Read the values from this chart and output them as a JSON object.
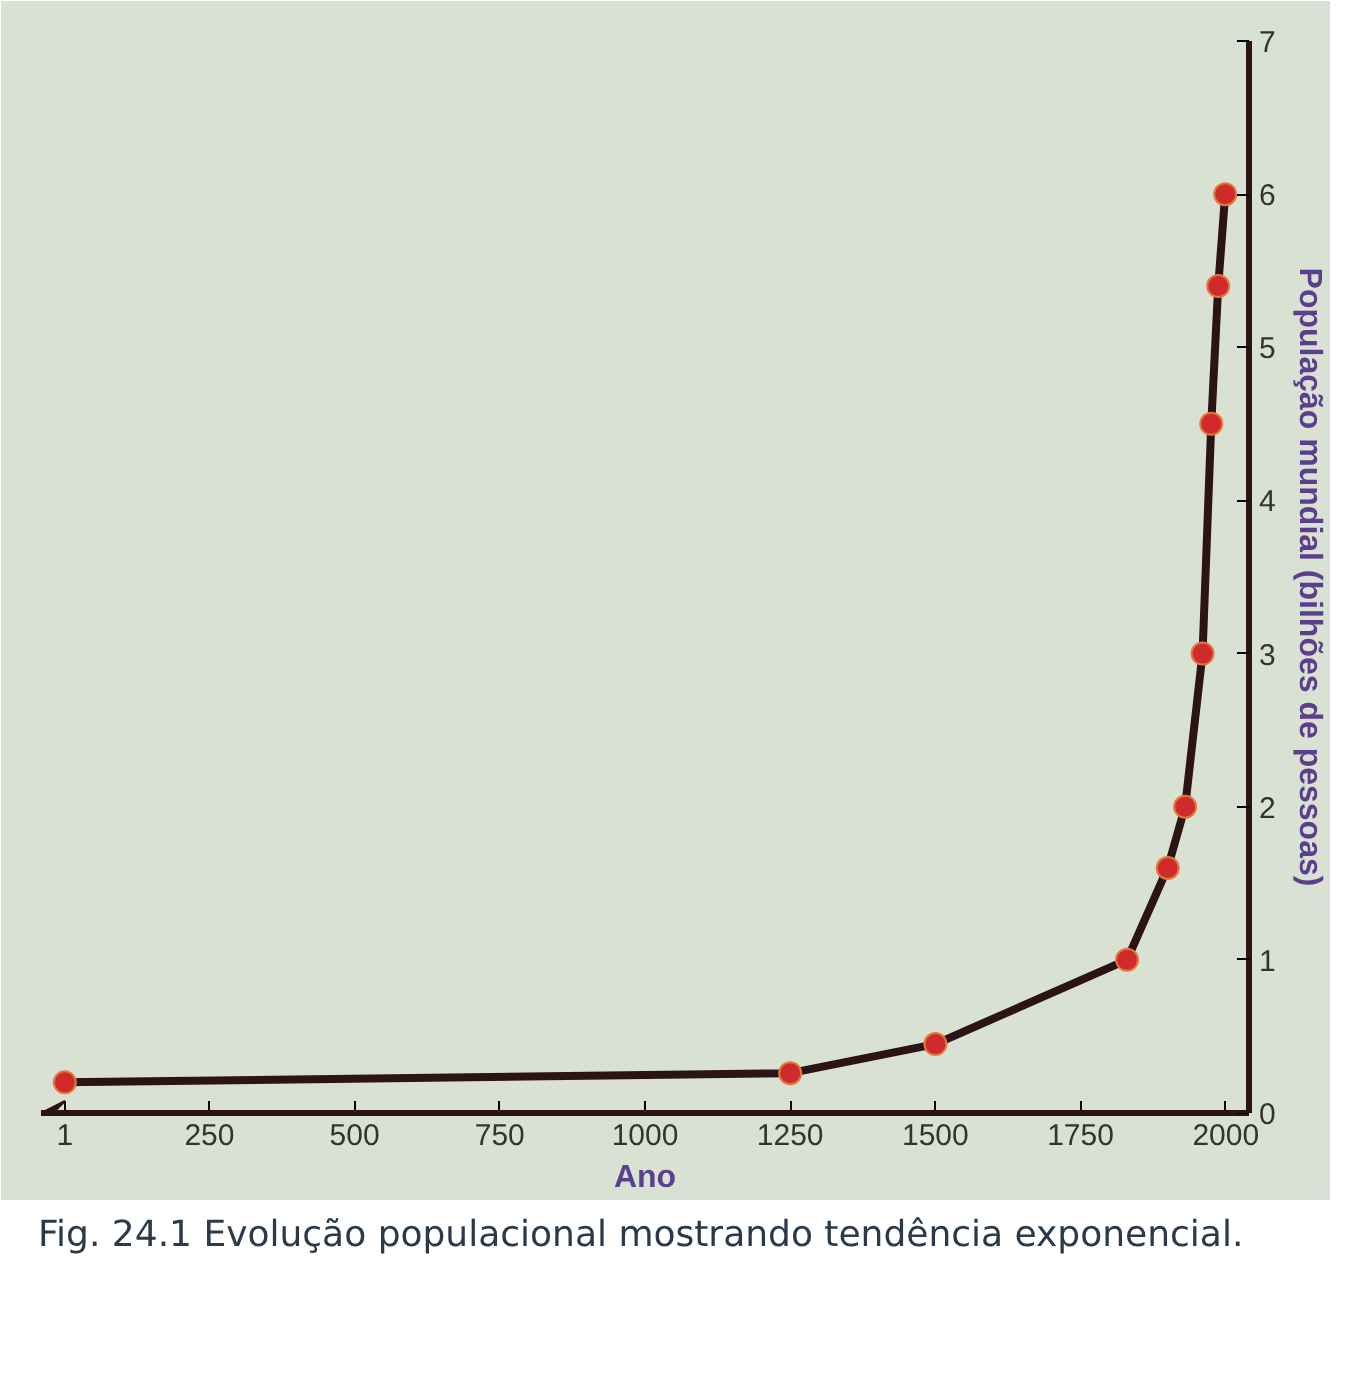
{
  "chart_data": {
    "type": "line",
    "xlabel": "Ano",
    "ylabel": "População mundial (bilhões de pessoas)",
    "x": [
      1,
      1250,
      1500,
      1830,
      1900,
      1930,
      1960,
      1975,
      1987,
      1999
    ],
    "series": [
      {
        "color": "#2b1414",
        "values": [
          0.2,
          0.26,
          0.45,
          1.0,
          1.6,
          2.0,
          3.0,
          4.5,
          5.4,
          6.0
        ]
      }
    ],
    "marker": "circle",
    "grid": false,
    "xlim": [
      -40,
      2040
    ],
    "xticks": [
      1,
      250,
      500,
      750,
      1000,
      1250,
      1500,
      1750,
      2000
    ],
    "ylim": [
      0,
      7
    ],
    "yticks": [
      0,
      1,
      2,
      3,
      4,
      5,
      6,
      7
    ],
    "annotations": [
      "Fig. 24.1 Evolução populacional mostrando tendência exponencial."
    ]
  }
}
